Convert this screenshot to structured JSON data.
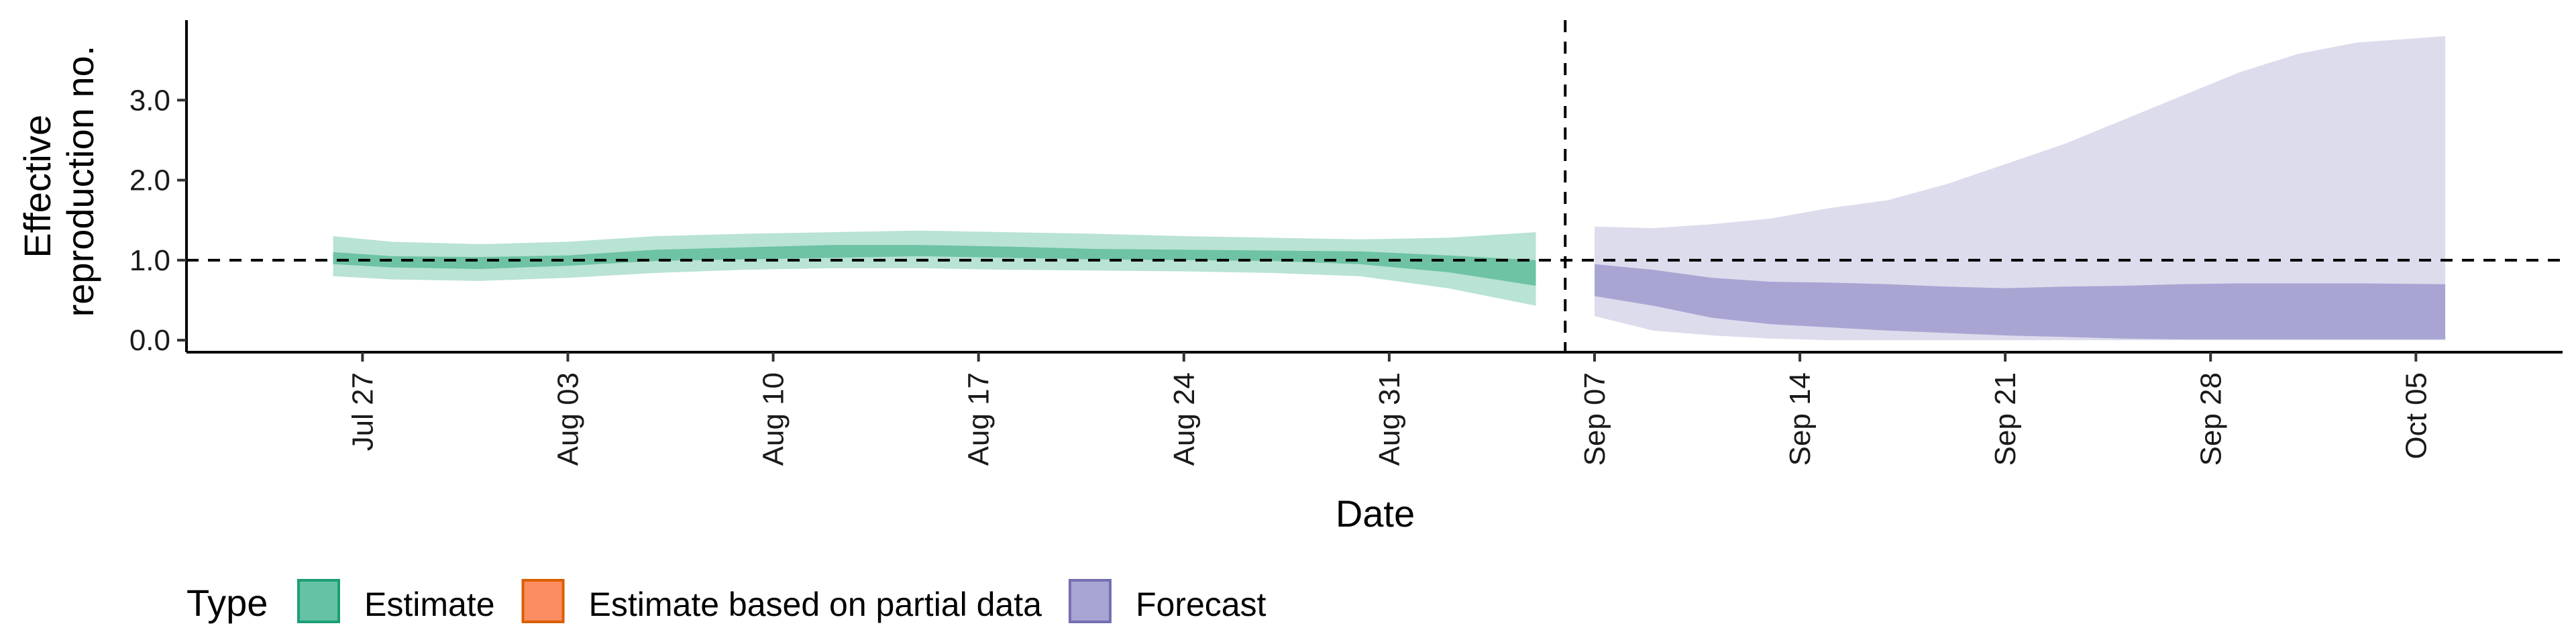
{
  "chart_data": {
    "type": "area",
    "xlabel": "Date",
    "ylabel_lines": [
      "Effective",
      "reproduction no."
    ],
    "x_ticks": [
      "Jul 27",
      "Aug 03",
      "Aug 10",
      "Aug 17",
      "Aug 24",
      "Aug 31",
      "Sep 07",
      "Sep 14",
      "Sep 21",
      "Sep 28",
      "Oct 05"
    ],
    "y_ticks": [
      "0.0",
      "1.0",
      "2.0",
      "3.0"
    ],
    "xlim": [
      "2020-07-21",
      "2020-10-10"
    ],
    "ylim": [
      -0.15,
      4.0
    ],
    "forecast_start": "2020-09-06",
    "reference_line": 1.0,
    "grid": false,
    "legend": {
      "title": "Type",
      "position": "bottom-left",
      "items": [
        {
          "label": "Estimate",
          "fill": "#66C2A5",
          "stroke": "#1B9E77"
        },
        {
          "label": "Estimate based on partial data",
          "fill": "#FC8D62",
          "stroke": "#D95F02"
        },
        {
          "label": "Forecast",
          "fill": "#A9A5D3",
          "stroke": "#7570B3"
        }
      ]
    },
    "series": [
      {
        "name": "Estimate",
        "outer_fill": "#B9E3D4",
        "inner_fill": "#6DC3A3",
        "dates": [
          "2020-07-26",
          "2020-07-28",
          "2020-07-31",
          "2020-08-03",
          "2020-08-06",
          "2020-08-09",
          "2020-08-12",
          "2020-08-15",
          "2020-08-18",
          "2020-08-21",
          "2020-08-24",
          "2020-08-27",
          "2020-08-30",
          "2020-09-02",
          "2020-09-05"
        ],
        "outer_upper": [
          1.3,
          1.23,
          1.2,
          1.23,
          1.3,
          1.33,
          1.35,
          1.37,
          1.35,
          1.33,
          1.3,
          1.28,
          1.26,
          1.28,
          1.35
        ],
        "outer_lower": [
          0.8,
          0.76,
          0.74,
          0.78,
          0.84,
          0.88,
          0.9,
          0.9,
          0.88,
          0.87,
          0.86,
          0.84,
          0.8,
          0.65,
          0.43
        ],
        "inner_upper": [
          1.1,
          1.05,
          1.04,
          1.06,
          1.13,
          1.16,
          1.19,
          1.19,
          1.17,
          1.14,
          1.13,
          1.12,
          1.11,
          1.06,
          1.0
        ],
        "inner_lower": [
          0.95,
          0.91,
          0.89,
          0.93,
          0.99,
          1.01,
          1.03,
          1.05,
          1.03,
          1.01,
          1.0,
          0.99,
          0.95,
          0.85,
          0.68
        ]
      },
      {
        "name": "Forecast",
        "outer_fill": "#DDDCED",
        "inner_fill": "#A9A5D3",
        "dates": [
          "2020-09-07",
          "2020-09-09",
          "2020-09-11",
          "2020-09-13",
          "2020-09-15",
          "2020-09-17",
          "2020-09-19",
          "2020-09-21",
          "2020-09-23",
          "2020-09-25",
          "2020-09-27",
          "2020-09-29",
          "2020-10-01",
          "2020-10-03",
          "2020-10-06"
        ],
        "outer_upper": [
          1.42,
          1.4,
          1.45,
          1.52,
          1.65,
          1.75,
          1.95,
          2.2,
          2.45,
          2.75,
          3.05,
          3.35,
          3.58,
          3.72,
          3.8
        ],
        "outer_lower": [
          0.3,
          0.12,
          0.06,
          0.02,
          0.0,
          0.0,
          0.0,
          0.0,
          0.0,
          0.0,
          0.0,
          0.0,
          0.0,
          0.0,
          0.0
        ],
        "inner_upper": [
          0.95,
          0.88,
          0.78,
          0.73,
          0.72,
          0.7,
          0.67,
          0.65,
          0.67,
          0.68,
          0.7,
          0.71,
          0.71,
          0.71,
          0.7
        ],
        "inner_lower": [
          0.55,
          0.43,
          0.28,
          0.2,
          0.16,
          0.12,
          0.09,
          0.06,
          0.04,
          0.02,
          0.01,
          0.01,
          0.01,
          0.01,
          0.01
        ]
      }
    ]
  }
}
